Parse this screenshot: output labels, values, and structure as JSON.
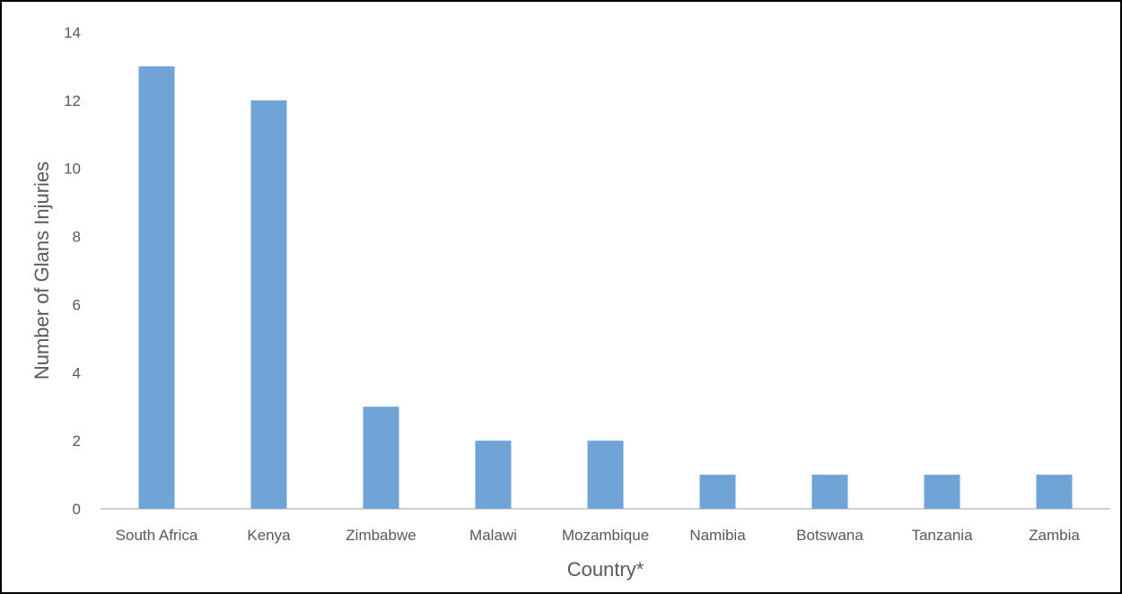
{
  "chart_data": {
    "type": "bar",
    "title": "",
    "xlabel": "Country*",
    "ylabel": "Number of Glans Injuries",
    "categories": [
      "South Africa",
      "Kenya",
      "Zimbabwe",
      "Malawi",
      "Mozambique",
      "Namibia",
      "Botswana",
      "Tanzania",
      "Zambia"
    ],
    "values": [
      13,
      12,
      3,
      2,
      2,
      1,
      1,
      1,
      1
    ],
    "ylim": [
      0,
      14
    ],
    "yticks": [
      0,
      2,
      4,
      6,
      8,
      10,
      12,
      14
    ],
    "grid": false,
    "legend": "none",
    "bar_color": "#70A3D6",
    "axis_color": "#BFBFBF"
  }
}
